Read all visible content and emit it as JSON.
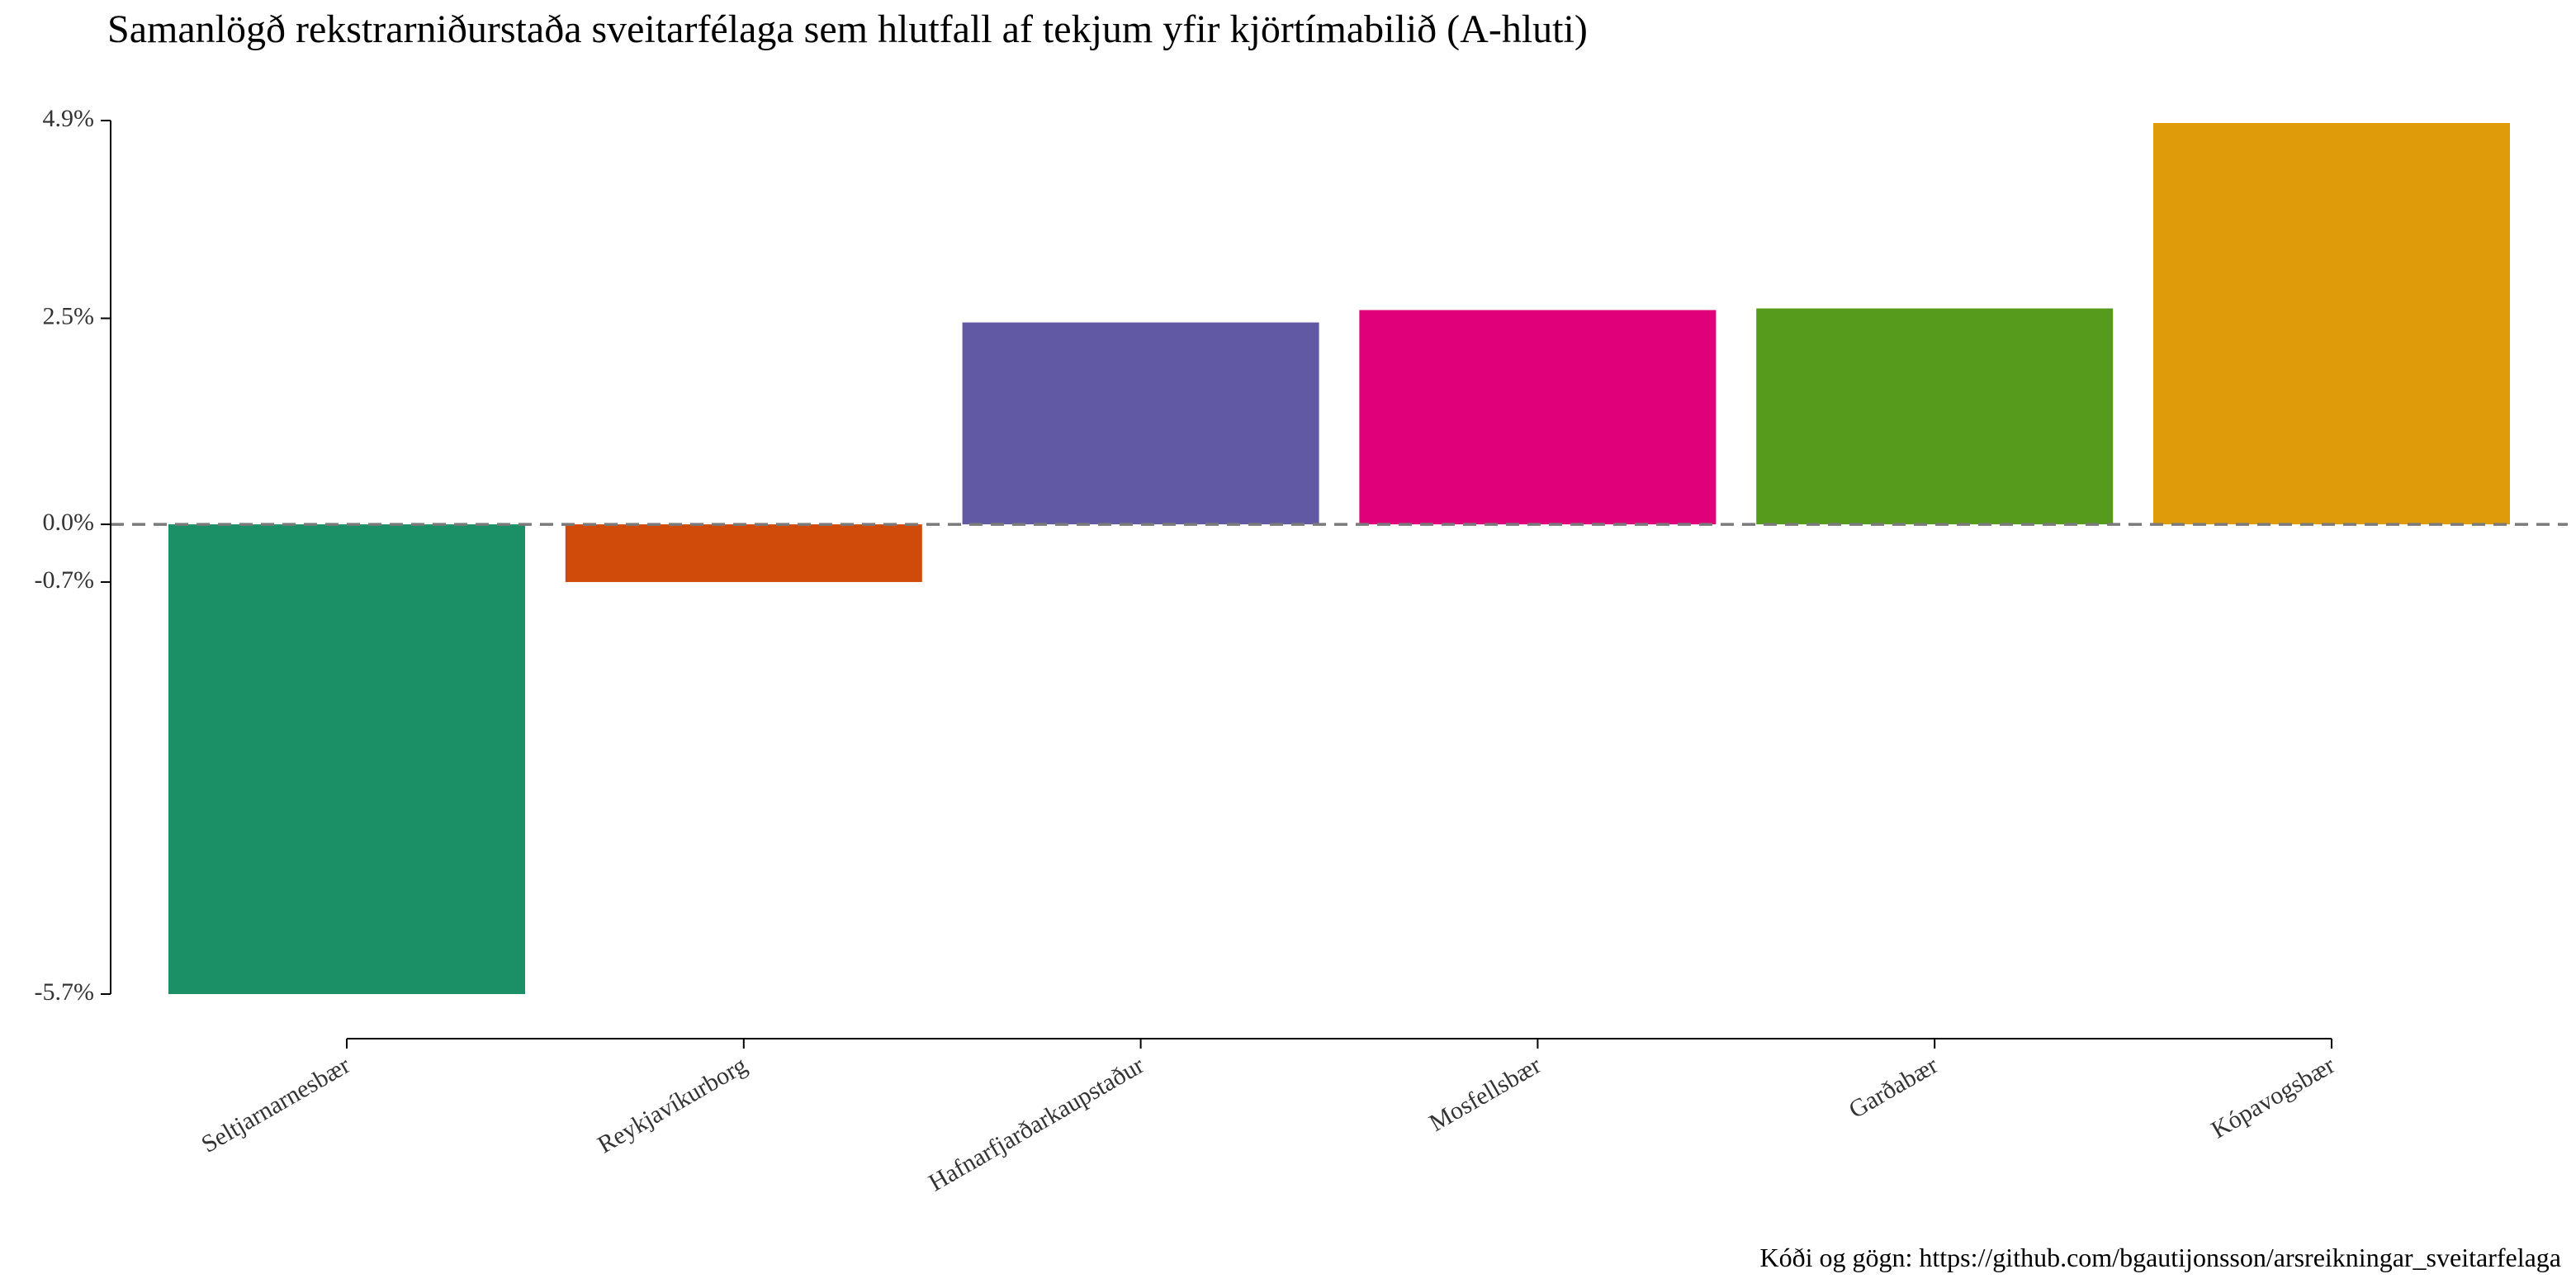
{
  "chart_data": {
    "type": "bar",
    "title": "Samanlögð rekstrarniðurstaða sveitarfélaga sem hlutfall af tekjum yfir kjörtímabilið (A-hluti)",
    "caption": "Kóði og gögn: https://github.com/bgautijonsson/arsreikningar_sveitarfelaga",
    "xlabel": "",
    "ylabel": "",
    "categories": [
      "Seltjarnarnesbær",
      "Reykjavíkurborg",
      "Hafnarfjarðarkaupstaður",
      "Mosfellsbær",
      "Garðabær",
      "Kópavogsbær"
    ],
    "values": [
      -5.7,
      -0.7,
      2.45,
      2.6,
      2.62,
      4.87
    ],
    "colors": [
      "#1b9066",
      "#d04a0a",
      "#6159a3",
      "#e0007a",
      "#579b1c",
      "#e09b0a"
    ],
    "y_ticks": [
      4.9,
      2.5,
      0.0,
      -0.7,
      -5.7
    ],
    "y_tick_labels": [
      "4.9%",
      "2.5%",
      "0.0%",
      "-0.7%",
      "-5.7%"
    ],
    "ylim": [
      -5.7,
      4.9
    ],
    "reference_line": {
      "value": 0,
      "style": "dashed",
      "color": "#7a7a7a"
    },
    "grid": false,
    "legend": "none"
  }
}
